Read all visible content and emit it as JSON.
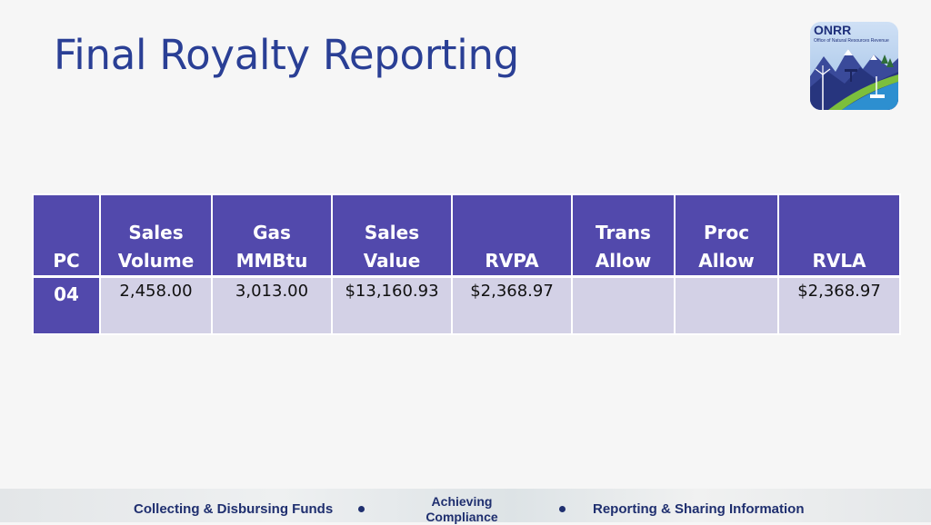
{
  "title": "Final Royalty Reporting",
  "logo": {
    "name": "ONRR",
    "subtitle": "Office of Natural Resources Revenue"
  },
  "table": {
    "headers": [
      {
        "line1": "",
        "line2": "PC"
      },
      {
        "line1": "Sales",
        "line2": "Volume"
      },
      {
        "line1": "Gas",
        "line2": "MMBtu"
      },
      {
        "line1": "",
        "line2": "Sales Value"
      },
      {
        "line1": "",
        "line2": "RVPA"
      },
      {
        "line1": "Trans",
        "line2": "Allow"
      },
      {
        "line1": "Proc",
        "line2": "Allow"
      },
      {
        "line1": "",
        "line2": "RVLA"
      }
    ],
    "rows": [
      [
        "04",
        "2,458.00",
        "3,013.00",
        "$13,160.93",
        "$2,368.97",
        "",
        "",
        "$2,368.97"
      ]
    ]
  },
  "footer": {
    "left": "Collecting & Disbursing Funds",
    "middle_line1": "Achieving",
    "middle_line2": "Compliance",
    "right": "Reporting & Sharing Information"
  },
  "colors": {
    "title": "#2a3f95",
    "header_bg": "#5249ac",
    "cell_bg": "#d3d1e6",
    "footer_text": "#1f2f6f"
  }
}
